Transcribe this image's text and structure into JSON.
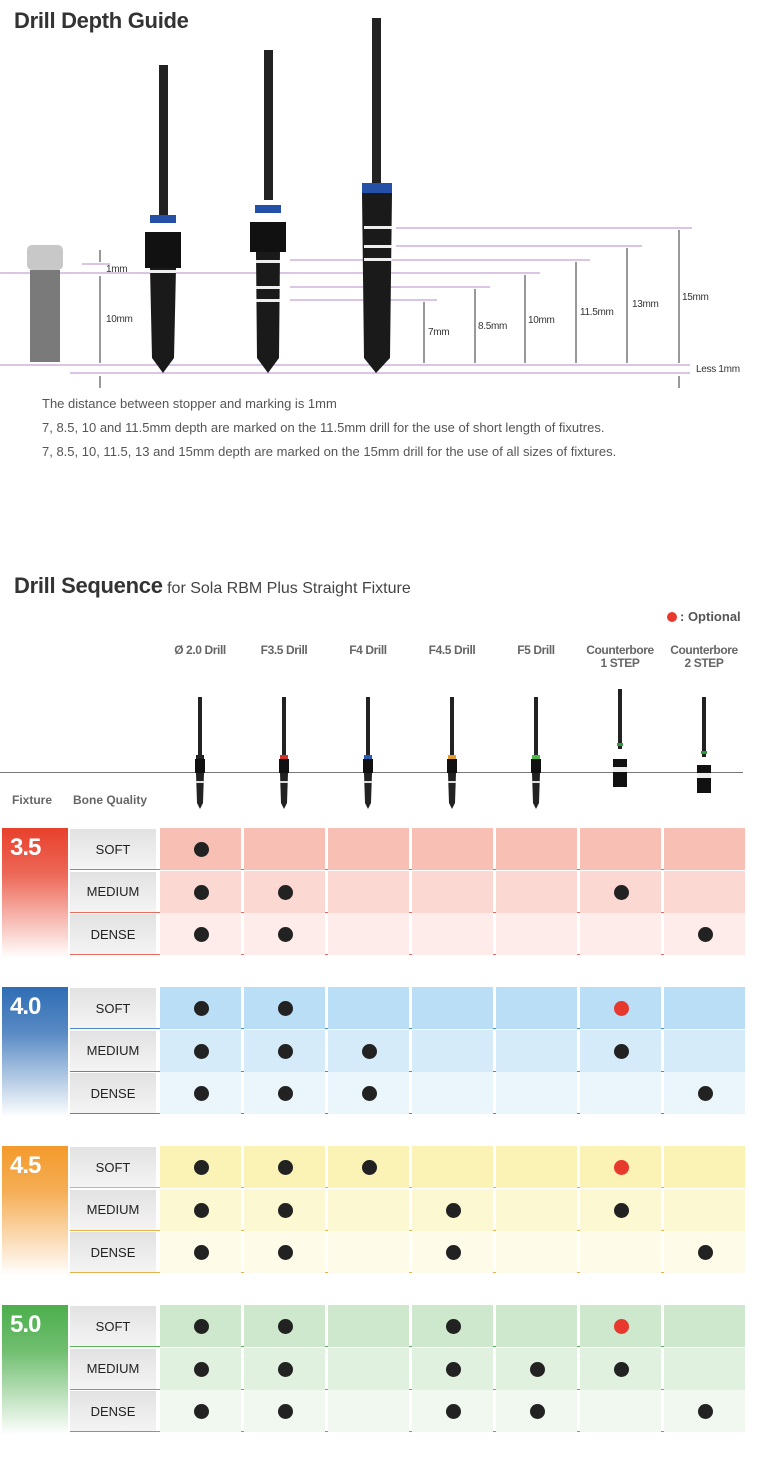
{
  "depth_guide": {
    "title": "Drill Depth Guide",
    "labels": {
      "one_mm": "1mm",
      "ten_mm_implant": "10mm",
      "d7": "7mm",
      "d85": "8.5mm",
      "d10": "10mm",
      "d115": "11.5mm",
      "d13": "13mm",
      "d15": "15mm",
      "less": "Less 1mm"
    },
    "notes": [
      "The distance between stopper and marking is 1mm",
      "7, 8.5, 10 and 11.5mm depth are marked on the 11.5mm drill for the use of short length of fixutres.",
      "7, 8.5, 10, 11.5, 13 and 15mm depth are marked on the 15mm drill for the use of all sizes of fixtures."
    ]
  },
  "sequence": {
    "title": "Drill Sequence",
    "subtitle": "for Sola RBM Plus Straight Fixture",
    "legend": ": Optional",
    "optional_color": "#e8392e",
    "col_fixture": "Fixture",
    "col_bone": "Bone Quality",
    "drills": [
      {
        "name": "Ø 2.0 Drill",
        "l2": "",
        "band": "#222222"
      },
      {
        "name": "F3.5 Drill",
        "l2": "",
        "band": "#d0312d"
      },
      {
        "name": "F4 Drill",
        "l2": "",
        "band": "#2a5db0"
      },
      {
        "name": "F4.5 Drill",
        "l2": "",
        "band": "#e39a2e"
      },
      {
        "name": "F5 Drill",
        "l2": "",
        "band": "#4db84a"
      },
      {
        "name": "Counterbore",
        "l2": "1 STEP",
        "band": "#2d9b3c"
      },
      {
        "name": "Counterbore",
        "l2": "2 STEP",
        "band": "#2d9b3c"
      }
    ],
    "groups": [
      {
        "fixture": "3.5",
        "color": "#e8412c",
        "row_bg": "#f8c0b4",
        "line": "#e86a5c",
        "rows": [
          {
            "quality": "SOFT",
            "marks": [
              1,
              0,
              0,
              0,
              0,
              0,
              0
            ]
          },
          {
            "quality": "MEDIUM",
            "marks": [
              1,
              1,
              0,
              0,
              0,
              1,
              0
            ]
          },
          {
            "quality": "DENSE",
            "marks": [
              1,
              1,
              0,
              0,
              0,
              0,
              1
            ]
          }
        ]
      },
      {
        "fixture": "4.0",
        "color": "#2f6db5",
        "row_bg": "#b9def5",
        "line": "#4a8cc8",
        "rows": [
          {
            "quality": "SOFT",
            "marks": [
              1,
              1,
              0,
              0,
              0,
              2,
              0
            ]
          },
          {
            "quality": "MEDIUM",
            "marks": [
              1,
              1,
              1,
              0,
              0,
              1,
              0
            ]
          },
          {
            "quality": "DENSE",
            "marks": [
              1,
              1,
              1,
              0,
              0,
              0,
              1
            ]
          }
        ]
      },
      {
        "fixture": "4.5",
        "color": "#f39a2b",
        "row_bg": "#fbf3b5",
        "line": "#e8b24a",
        "rows": [
          {
            "quality": "SOFT",
            "marks": [
              1,
              1,
              1,
              0,
              0,
              2,
              0
            ]
          },
          {
            "quality": "MEDIUM",
            "marks": [
              1,
              1,
              0,
              1,
              0,
              1,
              0
            ]
          },
          {
            "quality": "DENSE",
            "marks": [
              1,
              1,
              0,
              1,
              0,
              0,
              1
            ]
          }
        ]
      },
      {
        "fixture": "5.0",
        "color": "#4cae4c",
        "row_bg": "#cde8cc",
        "line": "#5ab85a",
        "rows": [
          {
            "quality": "SOFT",
            "marks": [
              1,
              1,
              0,
              1,
              0,
              2,
              0
            ]
          },
          {
            "quality": "MEDIUM",
            "marks": [
              1,
              1,
              0,
              1,
              1,
              1,
              0
            ]
          },
          {
            "quality": "DENSE",
            "marks": [
              1,
              1,
              0,
              1,
              1,
              0,
              1
            ]
          }
        ]
      }
    ]
  }
}
